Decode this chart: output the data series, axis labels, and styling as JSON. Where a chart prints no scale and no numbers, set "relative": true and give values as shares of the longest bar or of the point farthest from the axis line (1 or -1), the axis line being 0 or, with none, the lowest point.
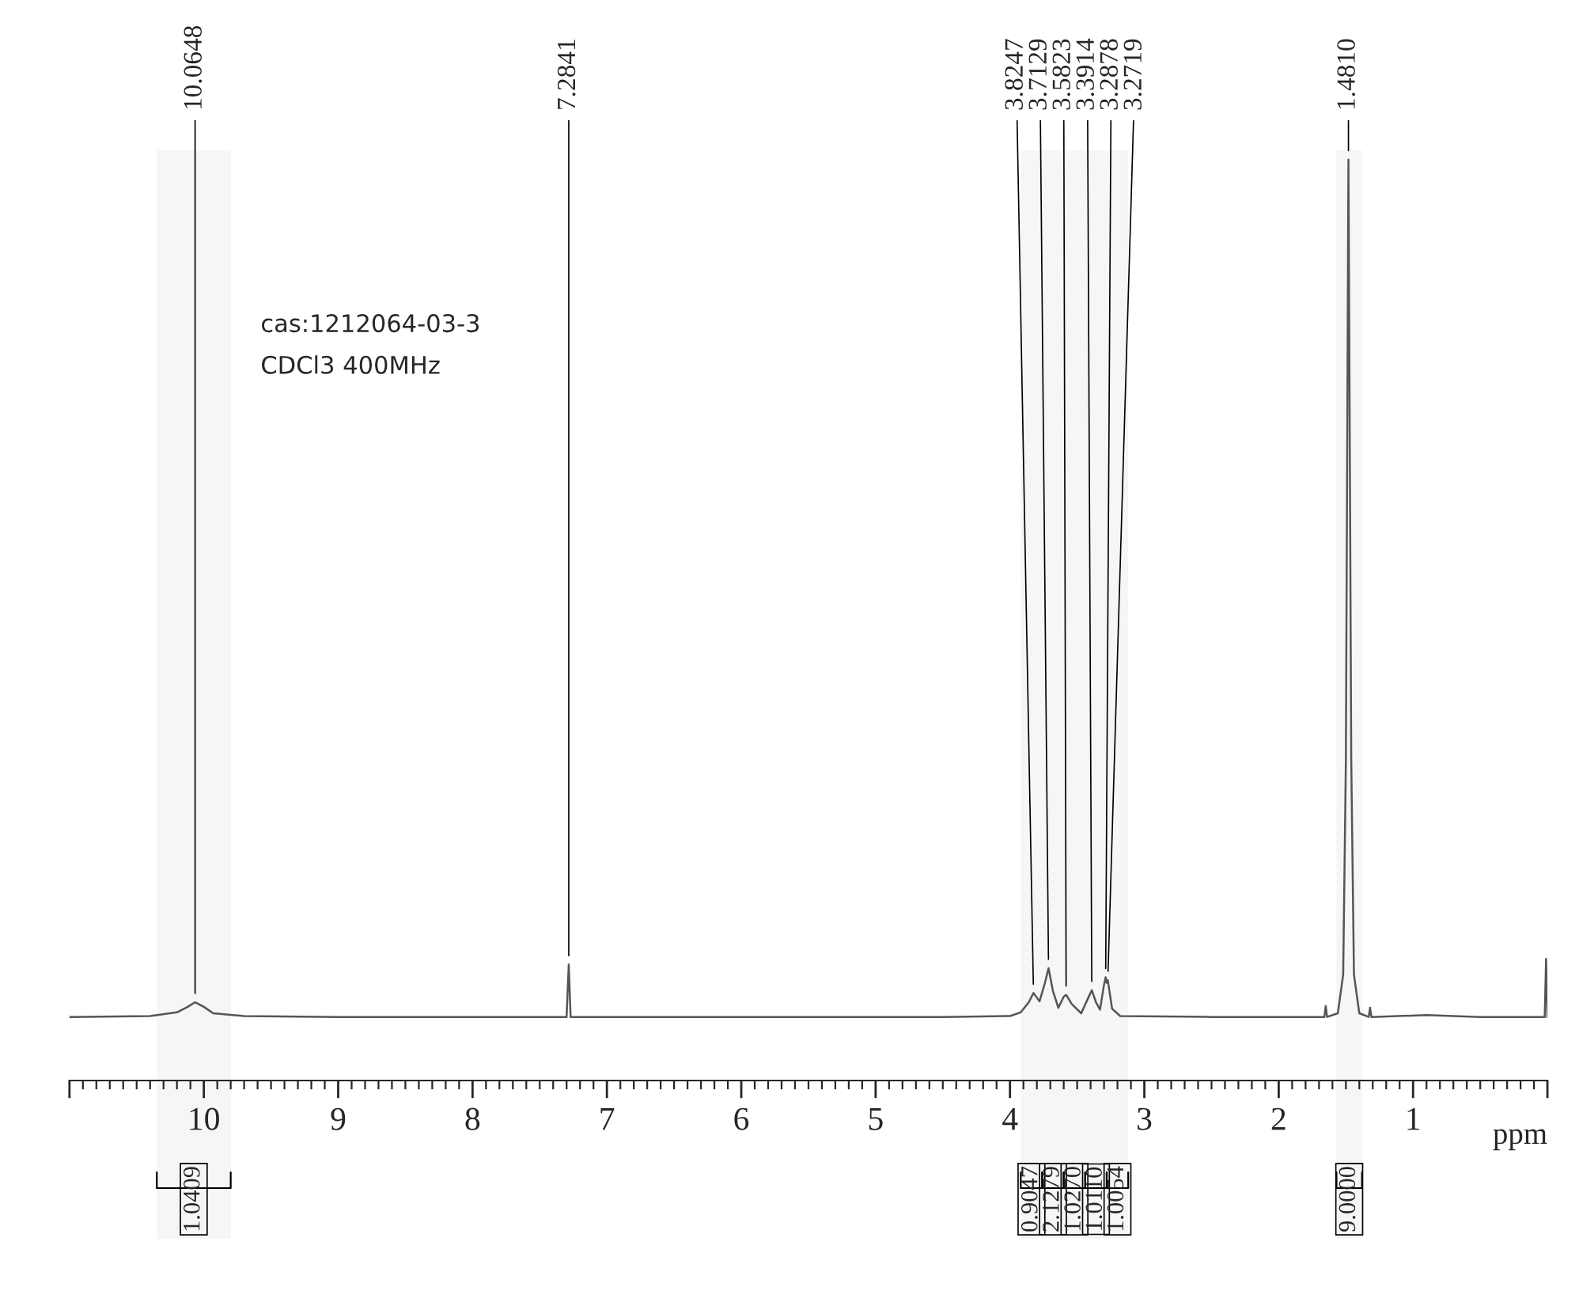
{
  "chart_data": {
    "type": "line",
    "relative": true,
    "xlabel": "ppm",
    "xlim": [
      11,
      0
    ],
    "xticks": [
      {
        "value": 11,
        "label": null
      },
      10,
      9,
      8,
      7,
      6,
      5,
      4,
      3,
      2,
      1,
      {
        "value": 0,
        "label": null
      }
    ],
    "grid": false,
    "legend": false,
    "marker": "none",
    "line_style": "solid",
    "series": [
      {
        "color": "#555555",
        "x": [
          11.0,
          10.4,
          10.2,
          10.12,
          10.065,
          10.0,
          9.93,
          9.7,
          9.0,
          8.0,
          7.3,
          7.284,
          7.27,
          6.0,
          4.5,
          4.0,
          3.92,
          3.86,
          3.825,
          3.78,
          3.74,
          3.713,
          3.68,
          3.64,
          3.6,
          3.582,
          3.54,
          3.47,
          3.42,
          3.391,
          3.36,
          3.33,
          3.3,
          3.288,
          3.28,
          3.272,
          3.24,
          3.18,
          2.5,
          1.66,
          1.65,
          1.64,
          1.56,
          1.52,
          1.5,
          1.481,
          1.46,
          1.44,
          1.4,
          1.33,
          1.32,
          1.31,
          0.9,
          0.5,
          0.02,
          0.01,
          0.0
        ],
        "values": [
          0.069,
          0.07,
          0.074,
          0.08,
          0.085,
          0.08,
          0.073,
          0.07,
          0.069,
          0.069,
          0.069,
          0.126,
          0.069,
          0.069,
          0.069,
          0.07,
          0.074,
          0.085,
          0.095,
          0.086,
          0.106,
          0.122,
          0.097,
          0.079,
          0.091,
          0.093,
          0.083,
          0.073,
          0.089,
          0.098,
          0.085,
          0.077,
          0.104,
          0.112,
          0.106,
          0.109,
          0.078,
          0.07,
          0.069,
          0.069,
          0.081,
          0.069,
          0.073,
          0.115,
          0.348,
          1.0,
          0.348,
          0.115,
          0.073,
          0.069,
          0.079,
          0.069,
          0.071,
          0.069,
          0.069,
          0.132,
          0.069
        ]
      }
    ],
    "annotations": [
      "cas:1212064-03-3",
      "CDCl3 400MHz",
      {
        "text": "10.0648",
        "x": 10.065,
        "y": 0.085
      },
      {
        "text": "7.2841",
        "x": 7.284,
        "y": 0.126
      },
      {
        "text": "3.8247",
        "x": 3.825,
        "y": 0.095
      },
      {
        "text": "3.7129",
        "x": 3.713,
        "y": 0.122
      },
      {
        "text": "3.5823",
        "x": 3.582,
        "y": 0.093
      },
      {
        "text": "3.3914",
        "x": 3.391,
        "y": 0.098
      },
      {
        "text": "3.2878",
        "x": 3.288,
        "y": 0.112
      },
      {
        "text": "3.2719",
        "x": 3.272,
        "y": 0.109
      },
      {
        "text": "1.4810",
        "x": 1.481,
        "y": 1.0
      }
    ],
    "bands": [
      {
        "axis": "x",
        "from": 10.35,
        "to": 9.8,
        "label": "1.0409"
      },
      {
        "axis": "x",
        "from": 3.92,
        "to": 3.76,
        "label": "0.9047"
      },
      {
        "axis": "x",
        "from": 3.76,
        "to": 3.6,
        "label": "2.1279"
      },
      {
        "axis": "x",
        "from": 3.6,
        "to": 3.44,
        "label": "1.0270"
      },
      {
        "axis": "x",
        "from": 3.44,
        "to": 3.28,
        "label": "1.0110"
      },
      {
        "axis": "x",
        "from": 3.28,
        "to": 3.12,
        "label": "1.0054"
      },
      {
        "axis": "x",
        "from": 1.57,
        "to": 1.38,
        "label": "9.0000"
      }
    ]
  }
}
